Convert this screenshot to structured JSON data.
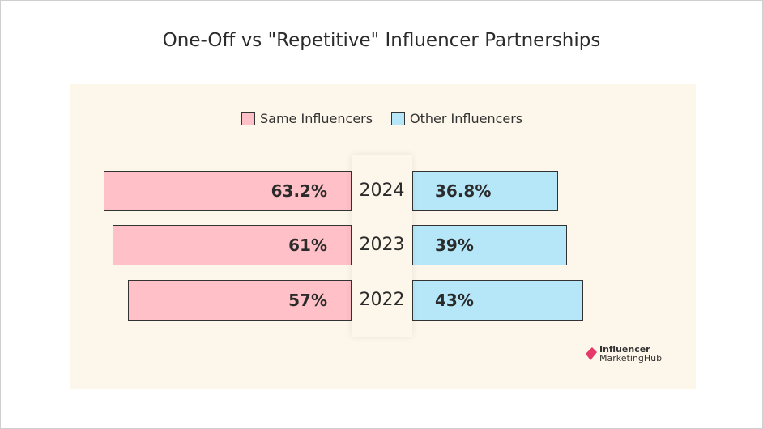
{
  "chart_data": {
    "type": "bar",
    "title": "One-Off vs \"Repetitive\" Influencer Partnerships",
    "categories": [
      "2024",
      "2023",
      "2022"
    ],
    "series": [
      {
        "name": "Same Influencers",
        "values": [
          63.2,
          61,
          57
        ],
        "labels": [
          "63.2%",
          "61%",
          "57%"
        ],
        "color": "#ffc1c7"
      },
      {
        "name": "Other Influencers",
        "values": [
          36.8,
          39,
          43
        ],
        "labels": [
          "36.8%",
          "39%",
          "43%"
        ],
        "color": "#b5e7f8"
      }
    ],
    "orientation": "horizontal-diverging",
    "legend": "top",
    "grid": false
  },
  "logo": {
    "line1": "Influencer",
    "line2": "MarketingHub"
  }
}
